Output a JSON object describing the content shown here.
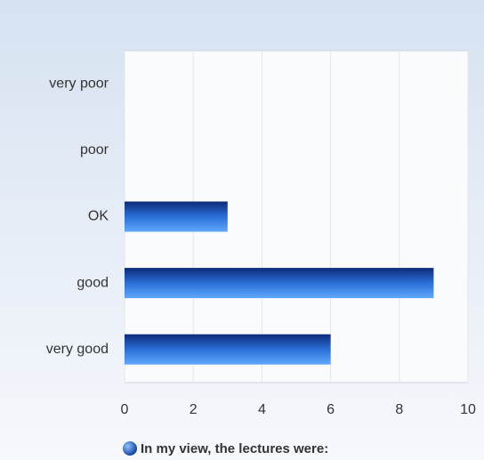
{
  "chart_data": {
    "type": "bar",
    "orientation": "horizontal",
    "categories": [
      "very poor",
      "poor",
      "OK",
      "good",
      "very good"
    ],
    "series": [
      {
        "name": "In my view, the lectures were:",
        "color": "#2a6fd6",
        "values": [
          0,
          0,
          3,
          9,
          6
        ]
      }
    ],
    "xlim": [
      0,
      10
    ],
    "xticks": [
      0,
      2,
      4,
      6,
      8,
      10
    ],
    "grid": true,
    "legend": "bottom"
  }
}
